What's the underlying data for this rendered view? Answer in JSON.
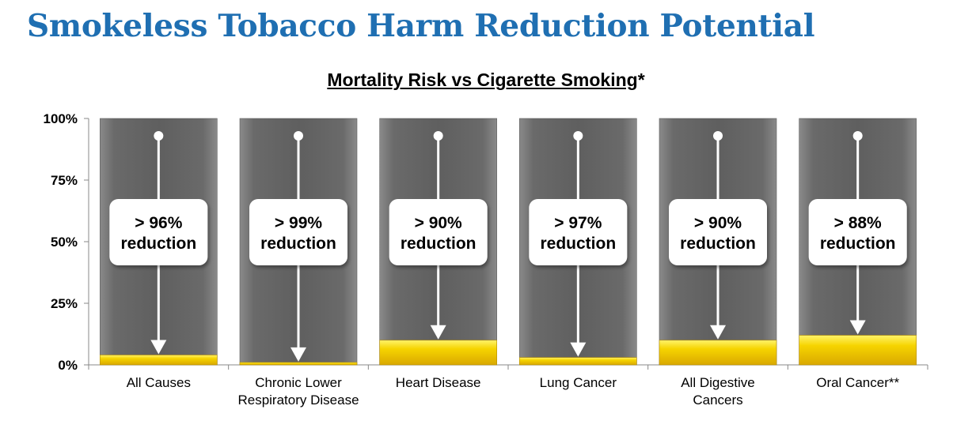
{
  "page": {
    "title": "Smokeless Tobacco Harm Reduction Potential"
  },
  "chart_data": {
    "type": "bar",
    "title": "Mortality Risk vs Cigarette Smoking",
    "title_suffix": "*",
    "ylim": [
      0,
      100
    ],
    "yticks": [
      "0%",
      "25%",
      "50%",
      "75%",
      "100%"
    ],
    "ytick_values": [
      0,
      25,
      50,
      75,
      100
    ],
    "categories": [
      [
        "All Causes"
      ],
      [
        "Chronic Lower",
        "Respiratory Disease"
      ],
      [
        "Heart Disease"
      ],
      [
        "Lung Cancer"
      ],
      [
        "All Digestive",
        "Cancers"
      ],
      [
        "Oral Cancer**"
      ]
    ],
    "series": [
      {
        "name": "",
        "values": [
          100,
          100,
          100,
          100,
          100,
          100
        ],
        "color": "#6e6e6e"
      },
      {
        "name": "",
        "values": [
          4,
          1,
          10,
          3,
          10,
          12
        ],
        "color": "#f3cb00"
      }
    ],
    "annotations": [
      [
        "> 96%",
        "reduction"
      ],
      [
        "> 99%",
        "reduction"
      ],
      [
        "> 90%",
        "reduction"
      ],
      [
        "> 97%",
        "reduction"
      ],
      [
        "> 90%",
        "reduction"
      ],
      [
        "> 88%",
        "reduction"
      ]
    ],
    "grid": false,
    "legend": "none"
  }
}
